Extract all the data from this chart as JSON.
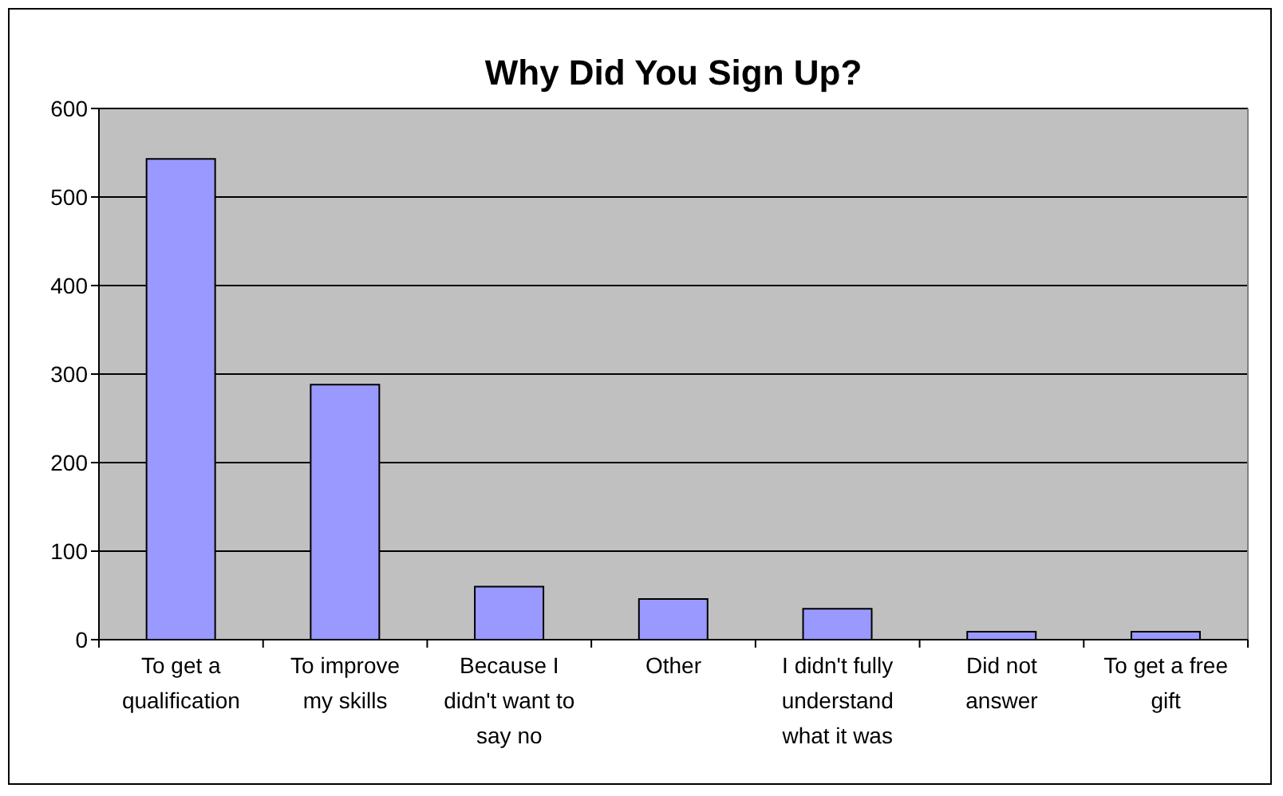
{
  "chart_data": {
    "type": "bar",
    "title": "Why Did You Sign Up?",
    "categories": [
      "To get a qualification",
      "To improve my skills",
      "Because I didn't want to say no",
      "Other",
      "I didn't fully understand what it was",
      "Did not answer",
      "To get a free gift"
    ],
    "values": [
      543,
      288,
      60,
      46,
      35,
      9,
      9
    ],
    "color": "#9999ff",
    "ylim": [
      0,
      600
    ],
    "yticks": [
      0,
      100,
      200,
      300,
      400,
      500,
      600
    ],
    "grid": "y"
  }
}
